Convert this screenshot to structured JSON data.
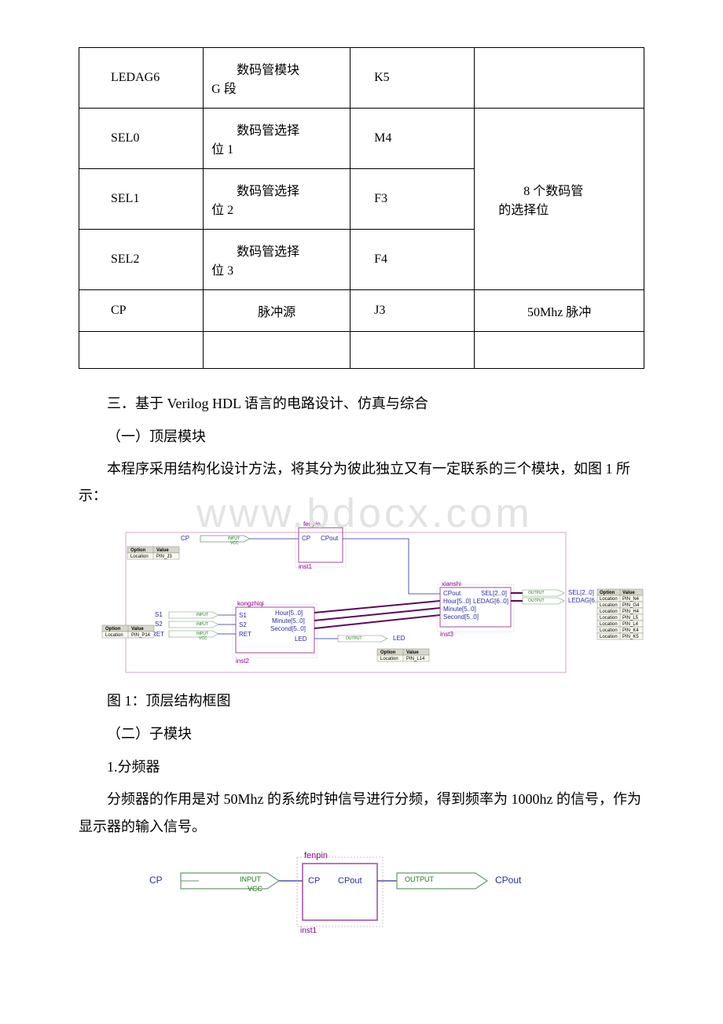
{
  "table": {
    "rows": [
      {
        "name": "LEDAG6",
        "desc_prefix": "数码管模块",
        "desc_line2": "G 段",
        "pin": "K5",
        "note": ""
      },
      {
        "name": "SEL0",
        "desc_prefix": "数码管选择",
        "desc_line2": "位 1",
        "pin": "M4",
        "note": ""
      },
      {
        "name": "SEL1",
        "desc_prefix": "数码管选择",
        "desc_line2": "位 2",
        "pin": "F3",
        "note": ""
      },
      {
        "name": "SEL2",
        "desc_prefix": "数码管选择",
        "desc_line2": "位 3",
        "pin": "F4",
        "note": ""
      },
      {
        "name": "CP",
        "desc_prefix": "脉冲源",
        "desc_line2": "",
        "pin": "J3",
        "note": "50Mhz 脉冲"
      }
    ],
    "merged_note": {
      "line1": "8 个数码管",
      "line2": "的选择位"
    }
  },
  "section3_title": "三．基于 Verilog HDL 语言的电路设计、仿真与综合",
  "sub1_title": "（一）顶层模块",
  "para1": "本程序采用结构化设计方法，将其分为彼此独立又有一定联系的三个模块，如图 1 所示：",
  "watermark_text": "www.bdocx.com",
  "fig1_caption": "图 1：顶层结构框图",
  "sub2_title": "（二）子模块",
  "item1_title": "1.分频器",
  "para2": "分频器的作用是对 50Mhz 的系统时钟信号进行分频，得到频率为 1000hz 的信号，作为显示器的输入信号。",
  "diagram1": {
    "blocks": {
      "fenpin": {
        "title": "fenpin",
        "port_in": "CP",
        "port_out": "CPout",
        "inst": "inst1"
      },
      "kongzhiqi": {
        "title": "kongzhiqi",
        "inst": "inst2",
        "ports_left": [
          "S1",
          "S2",
          "RET"
        ],
        "ports_right": [
          "Hour[5..0]",
          "Minute[5..0]",
          "Second[5..0]",
          "LED"
        ]
      },
      "xianshi": {
        "title": "xianshi",
        "inst": "inst3",
        "ports_left": [
          "CPout",
          "Hour[5..0]",
          "Minute[5..0]",
          "Second[5..0]"
        ],
        "ports_right": [
          "SEL[2..0]",
          "LEDAG[6..0]"
        ]
      }
    },
    "inputs": {
      "cp": "CP",
      "s1": "S1",
      "s2": "S2",
      "ret": "RET"
    },
    "outputs": {
      "sel": "SEL[2..0]",
      "ledag": "LEDAG[6..0]",
      "led": "LED"
    },
    "io_labels": {
      "input": "INPUT",
      "output": "OUTPUT",
      "vcc": "VCC"
    },
    "opt_tables": {
      "header": [
        "Option",
        "Value"
      ],
      "cp_row": [
        "Location",
        "PIN_J3"
      ],
      "ret_row": [
        "Location",
        "PIN_P14"
      ],
      "led_row": [
        "Location",
        "PIN_L14"
      ],
      "ledag_rows": [
        [
          "Location",
          "PIN_N4"
        ],
        [
          "Location",
          "PIN_G4"
        ],
        [
          "Location",
          "PIN_H4"
        ],
        [
          "Location",
          "PIN_L5"
        ],
        [
          "Location",
          "PIN_L4"
        ],
        [
          "Location",
          "PIN_K4"
        ],
        [
          "Location",
          "PIN_K5"
        ]
      ]
    },
    "colors": {
      "block_border": "#a048a0",
      "wire_bus": "#5a0a5a",
      "wire_thin": "#2a2aa8",
      "text_port": "#2a2aa8",
      "text_title": "#8b008b"
    }
  },
  "diagram2": {
    "block": {
      "title": "fenpin",
      "port_in": "CP",
      "port_out": "CPout",
      "inst": "inst1"
    },
    "input_label": "CP",
    "output_label": "CPout",
    "io_labels": {
      "input": "INPUT",
      "output": "OUTPUT",
      "vcc": "VCC"
    }
  }
}
